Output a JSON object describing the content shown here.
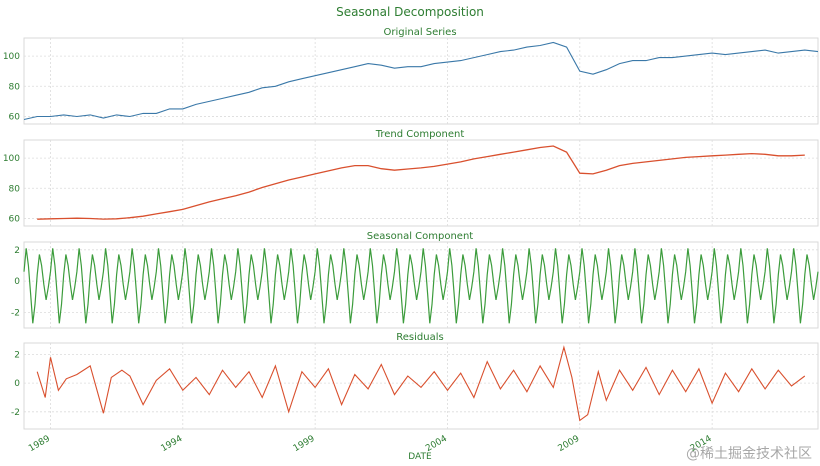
{
  "figure": {
    "title": "Seasonal Decomposition",
    "xlabel": "DATE",
    "watermark": "@稀土掘金技术社区",
    "x_ticks": [
      "1989",
      "1994",
      "1999",
      "2004",
      "2009",
      "2014"
    ]
  },
  "chart_data": [
    {
      "type": "line",
      "title": "Original Series",
      "color": "#3a78a8",
      "xlim": [
        1988.0,
        2018.0
      ],
      "ylim": [
        55,
        112
      ],
      "yticks": [
        60,
        80,
        100
      ],
      "grid": true,
      "x": [
        1988.0,
        1988.5,
        1989.0,
        1989.5,
        1990.0,
        1990.5,
        1991.0,
        1991.5,
        1992.0,
        1992.5,
        1993.0,
        1993.5,
        1994.0,
        1994.5,
        1995.0,
        1995.5,
        1996.0,
        1996.5,
        1997.0,
        1997.5,
        1998.0,
        1998.5,
        1999.0,
        1999.5,
        2000.0,
        2000.5,
        2001.0,
        2001.5,
        2002.0,
        2002.5,
        2003.0,
        2003.5,
        2004.0,
        2004.5,
        2005.0,
        2005.5,
        2006.0,
        2006.5,
        2007.0,
        2007.5,
        2008.0,
        2008.5,
        2009.0,
        2009.5,
        2010.0,
        2010.5,
        2011.0,
        2011.5,
        2012.0,
        2012.5,
        2013.0,
        2013.5,
        2014.0,
        2014.5,
        2015.0,
        2015.5,
        2016.0,
        2016.5,
        2017.0,
        2017.5,
        2018.0
      ],
      "values": [
        58,
        60,
        60,
        61,
        60,
        61,
        59,
        61,
        60,
        62,
        62,
        65,
        65,
        68,
        70,
        72,
        74,
        76,
        79,
        80,
        83,
        85,
        87,
        89,
        91,
        93,
        95,
        94,
        92,
        93,
        93,
        95,
        96,
        97,
        99,
        101,
        103,
        104,
        106,
        107,
        109,
        106,
        90,
        88,
        91,
        95,
        97,
        97,
        99,
        99,
        100,
        101,
        102,
        101,
        102,
        103,
        104,
        102,
        103,
        104,
        103
      ]
    },
    {
      "type": "line",
      "title": "Trend Component",
      "color": "#d9502e",
      "xlim": [
        1988.0,
        2018.0
      ],
      "ylim": [
        55,
        112
      ],
      "yticks": [
        60,
        80,
        100
      ],
      "grid": true,
      "x": [
        1988.5,
        1989.0,
        1989.5,
        1990.0,
        1990.5,
        1991.0,
        1991.5,
        1992.0,
        1992.5,
        1993.0,
        1993.5,
        1994.0,
        1994.5,
        1995.0,
        1995.5,
        1996.0,
        1996.5,
        1997.0,
        1997.5,
        1998.0,
        1998.5,
        1999.0,
        1999.5,
        2000.0,
        2000.5,
        2001.0,
        2001.5,
        2002.0,
        2002.5,
        2003.0,
        2003.5,
        2004.0,
        2004.5,
        2005.0,
        2005.5,
        2006.0,
        2006.5,
        2007.0,
        2007.5,
        2008.0,
        2008.5,
        2009.0,
        2009.5,
        2010.0,
        2010.5,
        2011.0,
        2011.5,
        2012.0,
        2012.5,
        2013.0,
        2013.5,
        2014.0,
        2014.5,
        2015.0,
        2015.5,
        2016.0,
        2016.5,
        2017.0,
        2017.5
      ],
      "values": [
        59.5,
        59.8,
        60.0,
        60.2,
        60.0,
        59.6,
        59.8,
        60.5,
        61.5,
        63.0,
        64.5,
        66.0,
        68.5,
        71.0,
        73.0,
        75.0,
        77.5,
        80.5,
        83.0,
        85.5,
        87.5,
        89.5,
        91.5,
        93.5,
        95.0,
        95.0,
        93.0,
        92.0,
        92.8,
        93.5,
        94.5,
        96.0,
        97.5,
        99.5,
        101.0,
        102.5,
        104.0,
        105.5,
        107.0,
        108.0,
        104.0,
        90.0,
        89.5,
        92.0,
        95.0,
        96.5,
        97.5,
        98.5,
        99.5,
        100.5,
        101.0,
        101.5,
        102.0,
        102.5,
        103.0,
        102.5,
        101.5,
        101.5,
        102.0
      ]
    },
    {
      "type": "line",
      "title": "Seasonal Component",
      "color": "#3c9c3c",
      "xlim": [
        1988.0,
        2018.0
      ],
      "ylim": [
        -3.0,
        2.5
      ],
      "yticks": [
        -2,
        0,
        2
      ],
      "grid": true,
      "period_years": 1,
      "pattern": [
        0.6,
        2.1,
        1.0,
        -0.8,
        -2.7,
        -1.5,
        0.4,
        1.7,
        1.0,
        -0.2,
        -1.2,
        -0.4
      ],
      "x_start": 1988.0,
      "x_end": 2018.0
    },
    {
      "type": "line",
      "title": "Residuals",
      "color": "#d9502e",
      "xlim": [
        1988.0,
        2018.0
      ],
      "ylim": [
        -3.2,
        2.8
      ],
      "yticks": [
        -2,
        0,
        2
      ],
      "grid": true,
      "x": [
        1988.5,
        1988.8,
        1989.0,
        1989.3,
        1989.6,
        1990.0,
        1990.5,
        1991.0,
        1991.3,
        1991.7,
        1992.0,
        1992.5,
        1993.0,
        1993.5,
        1994.0,
        1994.5,
        1995.0,
        1995.5,
        1996.0,
        1996.5,
        1997.0,
        1997.5,
        1998.0,
        1998.5,
        1999.0,
        1999.5,
        2000.0,
        2000.5,
        2001.0,
        2001.5,
        2002.0,
        2002.5,
        2003.0,
        2003.5,
        2004.0,
        2004.5,
        2005.0,
        2005.5,
        2006.0,
        2006.5,
        2007.0,
        2007.5,
        2008.0,
        2008.4,
        2008.7,
        2009.0,
        2009.3,
        2009.7,
        2010.0,
        2010.5,
        2011.0,
        2011.5,
        2012.0,
        2012.5,
        2013.0,
        2013.5,
        2014.0,
        2014.5,
        2015.0,
        2015.5,
        2016.0,
        2016.5,
        2017.0,
        2017.5
      ],
      "values": [
        0.8,
        -1.0,
        1.8,
        -0.5,
        0.3,
        0.6,
        1.2,
        -2.1,
        0.4,
        0.9,
        0.5,
        -1.5,
        0.2,
        1.0,
        -0.5,
        0.4,
        -0.8,
        0.9,
        -0.3,
        0.8,
        -1.0,
        1.2,
        -2.0,
        0.8,
        -0.3,
        1.0,
        -1.5,
        0.6,
        -0.4,
        1.3,
        -0.8,
        0.5,
        -0.3,
        0.8,
        -0.5,
        0.7,
        -1.0,
        1.5,
        -0.4,
        0.9,
        -0.6,
        1.2,
        -0.3,
        2.5,
        0.4,
        -2.6,
        -2.2,
        0.8,
        -1.2,
        0.9,
        -0.5,
        1.1,
        -0.8,
        0.9,
        -0.6,
        1.0,
        -1.4,
        0.7,
        -0.6,
        1.0,
        -0.4,
        0.9,
        -0.2,
        0.5
      ]
    }
  ]
}
